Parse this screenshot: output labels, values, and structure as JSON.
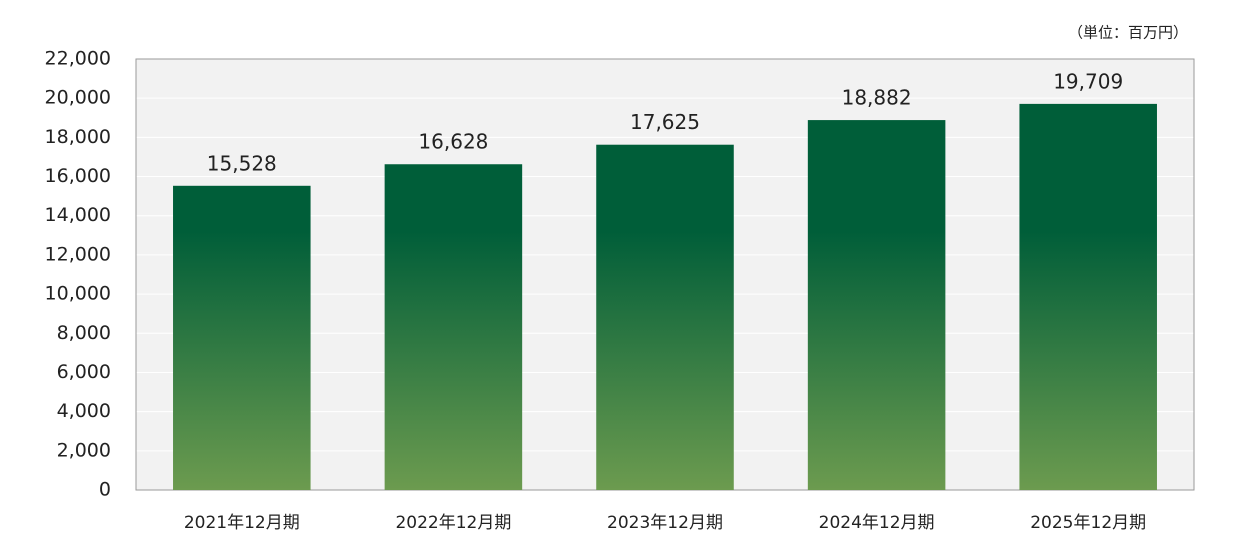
{
  "chart_data": {
    "type": "bar",
    "annotation": "（単位：百万円）",
    "categories": [
      "2021年12月期",
      "2022年12月期",
      "2023年12月期",
      "2024年12月期",
      "2025年12月期"
    ],
    "values": [
      15528,
      16628,
      17625,
      18882,
      19709
    ],
    "value_labels": [
      "15,528",
      "16,628",
      "17,625",
      "18,882",
      "19,709"
    ],
    "color": "#005e39",
    "ylim": [
      0,
      22000
    ],
    "yticks": [
      0,
      {
        "value": 2000,
        "label": "2,000"
      },
      {
        "value": 4000,
        "label": "4,000"
      },
      {
        "value": 6000,
        "label": "6,000"
      },
      {
        "value": 8000,
        "label": "8,000"
      },
      {
        "value": 10000,
        "label": "10,000"
      },
      {
        "value": 12000,
        "label": "12,000"
      },
      {
        "value": 14000,
        "label": "14,000"
      },
      {
        "value": 16000,
        "label": "16,000"
      },
      {
        "value": 18000,
        "label": "18,000"
      },
      {
        "value": 20000,
        "label": "20,000"
      },
      {
        "value": 22000,
        "label": "22,000"
      }
    ],
    "grid": true
  }
}
